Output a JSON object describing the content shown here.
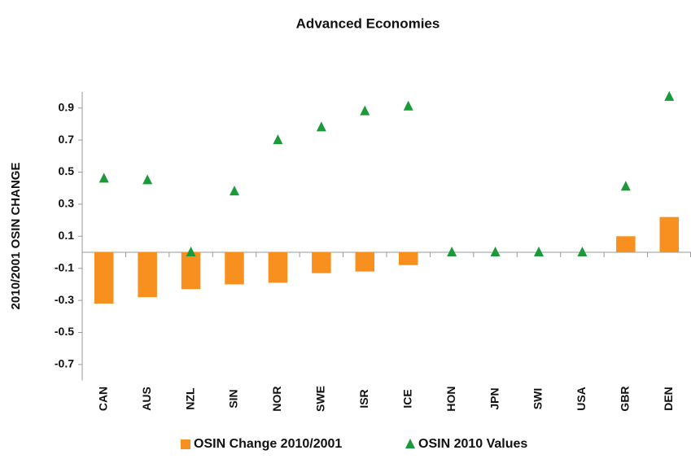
{
  "chart_data": {
    "type": "bar",
    "title": "Advanced Economies",
    "y_label": "2010/2001 OSIN CHANGE",
    "categories": [
      "CAN",
      "AUS",
      "NZL",
      "SIN",
      "NOR",
      "SWE",
      "ISR",
      "ICE",
      "HON",
      "JPN",
      "SWI",
      "USA",
      "GBR",
      "DEN"
    ],
    "series": [
      {
        "name": "OSIN Change 2010/2001",
        "color": "#f7901e",
        "marker": "bar",
        "values": [
          -0.32,
          -0.28,
          -0.23,
          -0.2,
          -0.19,
          -0.13,
          -0.12,
          -0.08,
          0,
          0,
          0,
          0,
          0.1,
          0.22
        ]
      },
      {
        "name": "OSIN 2010 Values",
        "color": "#1a9a38",
        "marker": "triangle",
        "values": [
          0.46,
          0.45,
          0.0,
          0.38,
          0.7,
          0.78,
          0.88,
          0.91,
          0,
          0,
          0,
          0,
          0.41,
          0.97
        ]
      }
    ],
    "ylim": [
      -0.8,
      1.0
    ],
    "yticks": [
      -0.7,
      -0.5,
      -0.3,
      -0.1,
      0.1,
      0.3,
      0.5,
      0.7,
      0.9
    ],
    "grid": false
  }
}
